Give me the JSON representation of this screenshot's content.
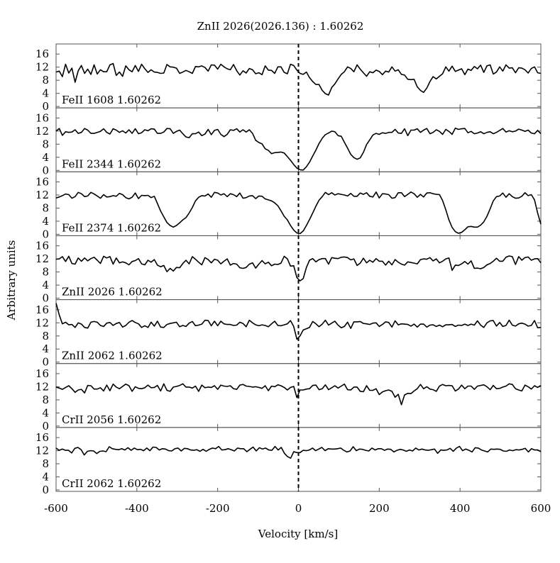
{
  "chart_data": {
    "type": "line",
    "title": "ZnII 2026(2026.136) : 1.60262",
    "xlabel": "Velocity [km/s]",
    "ylabel": "Arbitrary units",
    "xlim": [
      -600,
      600
    ],
    "ylim": [
      0,
      18
    ],
    "x_ticks": [
      "-600",
      "-400",
      "-200",
      "0",
      "200",
      "400",
      "600"
    ],
    "y_ticks": [
      "0",
      "4",
      "8",
      "12",
      "16"
    ],
    "marker_line_x": 0,
    "marker_line_style": "dashed",
    "line_color": "#000000",
    "step_kms": 8,
    "series": [
      {
        "name": "FeII 1608 1.60262",
        "values": [
          10.5,
          10.8,
          9.1,
          12.9,
          10.2,
          11.7,
          7.4,
          10.9,
          12.5,
          10.1,
          11.4,
          9.8,
          12.7,
          9.9,
          11.2,
          10.6,
          10.6,
          12.7,
          13.1,
          9.5,
          10.5,
          9.2,
          12.4,
          11.2,
          10.6,
          12.5,
          10.7,
          12.9,
          11.5,
          10.4,
          11.2,
          10.5,
          10.4,
          10.1,
          10.2,
          12.8,
          12.1,
          12.0,
          11.7,
          10.1,
          10.5,
          11.0,
          10.6,
          10.1,
          12.2,
          12.1,
          12.4,
          11.9,
          10.8,
          12.7,
          12.6,
          11.4,
          12.9,
          12.1,
          11.5,
          11.2,
          12.8,
          10.9,
          9.6,
          10.9,
          10.2,
          11.6,
          11.2,
          10.0,
          10.3,
          9.7,
          12.4,
          11.1,
          11.0,
          10.1,
          12.1,
          12.1,
          10.4,
          10.0,
          12.9,
          12.5,
          11.1,
          10.1,
          9.8,
          10.5,
          8.8,
          7.6,
          6.7,
          6.7,
          4.9,
          3.9,
          3.5,
          5.8,
          6.9,
          8.4,
          9.8,
          10.6,
          12.1,
          11.6,
          10.6,
          12.7,
          11.4,
          10.3,
          9.2,
          10.6,
          10.3,
          11.1,
          10.7,
          9.7,
          10.8,
          10.5,
          12.1,
          10.8,
          11.2,
          9.8,
          9.6,
          8.3,
          8.2,
          8.3,
          6.0,
          4.9,
          4.3,
          5.6,
          7.6,
          9.1,
          8.4,
          9.2,
          10.0,
          12.1,
          10.8,
          12.3,
          10.7,
          11.1,
          11.5,
          9.7,
          11.4,
          11.0,
          12.2,
          11.5,
          12.6,
          10.4,
          12.4,
          12.7,
          9.9,
          10.5,
          12.1,
          10.8,
          12.7,
          11.7,
          11.8,
          10.3,
          11.8,
          11.7,
          11.2,
          10.2,
          11.6,
          12.1,
          10.3,
          10.1
        ]
      },
      {
        "name": "FeII 2344 1.60262",
        "values": [
          12.0,
          12.8,
          10.7,
          11.8,
          11.6,
          11.7,
          12.4,
          11.3,
          11.6,
          12.8,
          12.3,
          11.3,
          11.3,
          11.6,
          11.9,
          12.7,
          11.6,
          11.1,
          12.7,
          12.3,
          11.6,
          12.1,
          11.4,
          12.4,
          11.3,
          12.7,
          11.2,
          11.5,
          12.4,
          12.1,
          12.7,
          12.6,
          11.3,
          11.3,
          11.7,
          12.8,
          12.7,
          11.3,
          11.9,
          12.3,
          11.2,
          10.2,
          10.0,
          11.2,
          11.2,
          11.7,
          10.6,
          11.1,
          12.5,
          10.9,
          12.2,
          12.5,
          11.0,
          10.3,
          11.0,
          12.4,
          12.2,
          12.7,
          11.7,
          12.4,
          11.7,
          12.4,
          11.3,
          9.2,
          8.5,
          8.1,
          6.6,
          6.1,
          5.1,
          5.4,
          5.5,
          5.6,
          5.3,
          4.2,
          3.1,
          1.8,
          0.7,
          0.2,
          0.1,
          1.1,
          2.5,
          4.4,
          6.2,
          8.2,
          9.8,
          10.9,
          11.4,
          12.0,
          11.8,
          10.6,
          10.4,
          8.6,
          6.8,
          4.9,
          3.9,
          3.4,
          3.8,
          5.5,
          7.9,
          9.3,
          10.8,
          11.3,
          11.0,
          11.5,
          11.3,
          11.6,
          11.6,
          12.5,
          11.4,
          11.3,
          12.7,
          10.6,
          12.3,
          12.3,
          12.7,
          11.6,
          12.3,
          12.8,
          11.2,
          11.6,
          12.4,
          11.9,
          11.0,
          12.5,
          11.9,
          11.0,
          12.9,
          12.5,
          12.7,
          12.8,
          11.5,
          11.9,
          11.2,
          11.4,
          11.8,
          11.2,
          11.6,
          11.8,
          11.2,
          11.6,
          12.2,
          12.8,
          11.7,
          12.1,
          11.8,
          12.0,
          12.6,
          12.3,
          11.9,
          12.3,
          11.4,
          11.2,
          12.2,
          11.2
        ]
      },
      {
        "name": "FeII 2374 1.60262",
        "values": [
          11.1,
          11.4,
          11.8,
          12.3,
          12.1,
          11.0,
          11.5,
          12.8,
          12.4,
          11.5,
          11.7,
          12.8,
          12.3,
          11.7,
          11.0,
          12.1,
          11.4,
          11.5,
          11.8,
          11.6,
          12.5,
          12.1,
          11.2,
          10.8,
          11.3,
          12.6,
          10.9,
          11.9,
          11.8,
          11.9,
          11.2,
          11.6,
          9.4,
          7.1,
          5.3,
          3.6,
          2.7,
          2.2,
          2.7,
          3.5,
          4.4,
          5.1,
          6.5,
          8.2,
          10.2,
          11.3,
          11.8,
          11.7,
          12.3,
          11.3,
          12.8,
          12.6,
          12.0,
          12.4,
          11.5,
          12.4,
          12.1,
          11.5,
          12.6,
          11.0,
          11.2,
          11.7,
          11.8,
          10.9,
          11.7,
          11.6,
          10.8,
          10.5,
          10.2,
          9.6,
          8.7,
          7.2,
          5.5,
          4.4,
          2.7,
          1.3,
          0.4,
          0.2,
          1.0,
          2.7,
          4.5,
          6.5,
          8.6,
          10.4,
          11.5,
          12.8,
          12.1,
          12.7,
          12.0,
          12.4,
          12.2,
          12.0,
          11.7,
          12.5,
          11.6,
          11.6,
          12.6,
          12.2,
          12.7,
          11.6,
          11.4,
          12.9,
          11.1,
          12.4,
          12.3,
          12.1,
          11.0,
          11.2,
          12.7,
          12.7,
          11.5,
          12.2,
          12.9,
          12.4,
          11.3,
          12.2,
          11.4,
          12.6,
          12.7,
          12.4,
          12.2,
          12.1,
          10.3,
          7.5,
          4.4,
          2.1,
          0.8,
          0.3,
          0.6,
          1.4,
          2.3,
          2.4,
          2.2,
          2.2,
          2.8,
          3.8,
          5.5,
          7.8,
          10.2,
          11.5,
          11.7,
          12.6,
          11.3,
          12.4,
          11.5,
          11.0,
          11.1,
          11.6,
          12.7,
          11.8,
          12.1,
          10.5,
          6.5,
          3.1
        ]
      },
      {
        "name": "ZnII 2026 1.60262",
        "values": [
          11.9,
          12.0,
          12.7,
          11.2,
          12.8,
          10.6,
          10.4,
          12.3,
          11.3,
          12.3,
          11.4,
          12.1,
          12.5,
          11.6,
          10.6,
          12.8,
          12.3,
          12.7,
          10.4,
          12.3,
          10.8,
          11.1,
          10.8,
          10.2,
          11.2,
          11.5,
          12.1,
          10.5,
          10.2,
          11.6,
          11.0,
          11.8,
          10.1,
          9.6,
          10.0,
          8.1,
          9.1,
          8.3,
          9.4,
          9.3,
          10.6,
          11.6,
          10.5,
          12.7,
          11.9,
          11.0,
          10.2,
          12.4,
          11.8,
          10.8,
          11.9,
          11.6,
          10.5,
          11.3,
          12.0,
          10.1,
          10.6,
          10.4,
          9.3,
          9.1,
          9.4,
          10.4,
          10.8,
          9.2,
          10.4,
          11.5,
          10.5,
          11.0,
          9.9,
          10.4,
          10.3,
          10.7,
          12.8,
          12.0,
          9.8,
          9.9,
          6.3,
          5.3,
          6.0,
          9.4,
          11.6,
          12.1,
          11.1,
          11.8,
          12.1,
          12.1,
          10.4,
          12.4,
          12.2,
          12.1,
          12.5,
          12.6,
          12.4,
          11.7,
          12.0,
          10.0,
          10.7,
          12.2,
          10.8,
          11.6,
          11.0,
          12.1,
          11.3,
          11.3,
          10.1,
          11.3,
          10.2,
          11.8,
          11.0,
          10.4,
          10.1,
          11.1,
          10.9,
          10.7,
          10.5,
          11.8,
          12.0,
          11.9,
          12.4,
          11.4,
          12.0,
          10.8,
          11.3,
          12.0,
          12.3,
          8.5,
          10.1,
          10.0,
          10.5,
          11.2,
          10.4,
          11.4,
          9.1,
          9.2,
          9.0,
          9.4,
          10.2,
          10.6,
          11.3,
          12.2,
          11.3,
          11.3,
          12.5,
          12.9,
          12.7,
          10.3,
          12.7,
          11.6,
          12.4,
          12.6,
          11.6,
          12.0,
          12.1,
          10.8
        ]
      },
      {
        "name": "ZnII 2062 1.60262",
        "values": [
          18.0,
          14.4,
          11.7,
          12.2,
          11.4,
          11.5,
          10.6,
          12.0,
          11.6,
          10.6,
          10.4,
          12.2,
          12.4,
          12.2,
          11.2,
          10.9,
          11.9,
          12.1,
          11.2,
          11.8,
          12.1,
          10.7,
          11.2,
          12.2,
          12.7,
          12.1,
          11.7,
          10.6,
          11.1,
          10.6,
          12.2,
          11.0,
          12.5,
          10.7,
          10.6,
          11.5,
          11.8,
          12.0,
          12.2,
          10.8,
          11.2,
          10.9,
          11.9,
          12.4,
          11.1,
          11.3,
          11.6,
          12.8,
          12.7,
          11.1,
          12.5,
          11.1,
          12.5,
          11.7,
          11.5,
          11.5,
          11.2,
          11.3,
          12.2,
          11.8,
          10.8,
          12.8,
          12.0,
          11.4,
          11.1,
          11.4,
          11.2,
          10.8,
          11.7,
          12.5,
          11.2,
          11.1,
          11.4,
          11.7,
          12.7,
          10.9,
          7.0,
          8.0,
          9.8,
          10.2,
          10.6,
          12.4,
          11.7,
          10.8,
          11.6,
          12.8,
          11.3,
          11.9,
          12.5,
          11.3,
          10.5,
          10.9,
          12.2,
          10.3,
          12.3,
          12.3,
          12.4,
          11.8,
          11.7,
          11.5,
          11.9,
          12.0,
          10.9,
          11.5,
          12.3,
          12.1,
          10.7,
          12.6,
          11.4,
          11.7,
          11.6,
          11.5,
          11.0,
          11.6,
          10.7,
          11.6,
          11.6,
          10.7,
          11.3,
          11.4,
          10.9,
          11.3,
          10.8,
          11.4,
          11.4,
          11.5,
          10.9,
          11.3,
          11.2,
          11.6,
          11.2,
          11.6,
          11.3,
          12.6,
          11.3,
          10.6,
          12.0,
          12.6,
          12.7,
          11.0,
          12.1,
          10.9,
          11.2,
          12.8,
          11.3,
          11.0,
          11.7,
          11.9,
          11.6,
          11.0,
          11.2,
          12.7,
          10.5,
          10.6
        ]
      },
      {
        "name": "CrII 2056 1.60262",
        "values": [
          11.9,
          11.6,
          11.2,
          11.8,
          12.3,
          11.4,
          10.3,
          11.0,
          11.2,
          10.1,
          12.4,
          12.3,
          11.3,
          11.3,
          11.7,
          10.7,
          12.5,
          10.8,
          12.8,
          11.9,
          11.4,
          12.1,
          12.8,
          12.3,
          10.6,
          12.0,
          11.5,
          11.4,
          11.7,
          12.5,
          11.7,
          11.8,
          12.4,
          10.7,
          12.9,
          10.9,
          10.6,
          11.9,
          12.1,
          12.4,
          12.9,
          11.9,
          11.9,
          11.6,
          12.2,
          10.6,
          12.5,
          11.7,
          11.9,
          11.8,
          12.3,
          11.2,
          12.5,
          12.2,
          12.1,
          12.3,
          11.4,
          11.2,
          12.5,
          12.7,
          12.2,
          12.1,
          11.9,
          12.0,
          11.8,
          11.5,
          12.3,
          10.8,
          12.2,
          12.0,
          12.6,
          12.3,
          11.8,
          11.0,
          11.8,
          12.1,
          8.7,
          11.0,
          11.0,
          11.3,
          11.4,
          12.4,
          12.5,
          11.1,
          11.4,
          12.6,
          11.1,
          11.7,
          12.3,
          11.6,
          12.2,
          12.8,
          11.1,
          11.0,
          11.9,
          11.9,
          10.6,
          10.5,
          12.3,
          10.9,
          10.9,
          11.4,
          9.6,
          10.4,
          10.8,
          11.0,
          10.6,
          8.8,
          9.7,
          6.5,
          9.5,
          10.0,
          9.9,
          10.7,
          11.4,
          12.7,
          11.4,
          12.0,
          11.3,
          11.1,
          10.6,
          12.2,
          12.7,
          12.3,
          12.4,
          12.3,
          10.7,
          11.3,
          12.5,
          11.4,
          12.2,
          12.2,
          11.2,
          12.2,
          12.4,
          12.6,
          12.0,
          11.1,
          12.4,
          11.4,
          11.5,
          11.9,
          12.2,
          12.9,
          12.7,
          11.4,
          11.0,
          10.7,
          12.5,
          12.0,
          11.3,
          12.3,
          11.8,
          12.4
        ]
      },
      {
        "name": "CrII 2062 1.60262",
        "values": [
          12.8,
          12.1,
          12.5,
          12.1,
          12.1,
          11.3,
          12.7,
          13.0,
          12.3,
          10.7,
          11.8,
          12.0,
          11.9,
          11.1,
          11.8,
          11.9,
          11.7,
          13.2,
          12.6,
          12.4,
          12.3,
          12.6,
          12.2,
          12.9,
          12.1,
          12.8,
          12.3,
          12.4,
          12.0,
          12.8,
          12.0,
          13.1,
          13.0,
          12.2,
          12.6,
          12.5,
          12.0,
          11.9,
          12.6,
          12.8,
          11.9,
          12.7,
          12.6,
          12.2,
          12.1,
          12.3,
          11.8,
          12.4,
          11.8,
          12.4,
          12.8,
          12.6,
          13.3,
          12.2,
          12.3,
          12.6,
          12.3,
          11.9,
          12.8,
          12.6,
          12.6,
          11.7,
          12.4,
          13.1,
          11.9,
          12.9,
          12.5,
          12.8,
          12.2,
          12.1,
          13.3,
          12.2,
          13.0,
          11.2,
          10.2,
          9.7,
          11.7,
          11.4,
          11.4,
          12.1,
          12.0,
          12.2,
          12.8,
          12.0,
          12.5,
          13.0,
          12.0,
          12.6,
          12.5,
          12.5,
          12.6,
          12.8,
          12.1,
          11.6,
          11.9,
          13.2,
          12.0,
          12.5,
          12.4,
          12.1,
          11.9,
          12.8,
          12.2,
          12.6,
          12.6,
          12.1,
          12.5,
          12.4,
          11.6,
          12.1,
          12.4,
          12.2,
          11.8,
          12.2,
          11.9,
          12.8,
          12.2,
          12.5,
          12.2,
          12.1,
          12.3,
          12.5,
          11.2,
          12.2,
          12.1,
          12.2,
          12.7,
          11.8,
          12.8,
          13.3,
          12.0,
          12.5,
          12.1,
          11.6,
          12.9,
          12.8,
          12.2,
          11.9,
          11.6,
          12.5,
          12.4,
          12.5,
          12.4,
          11.9,
          11.8,
          12.2,
          12.0,
          12.3,
          12.2,
          12.4,
          12.7,
          11.6,
          12.6,
          12.2,
          12.2,
          11.7
        ]
      }
    ]
  }
}
